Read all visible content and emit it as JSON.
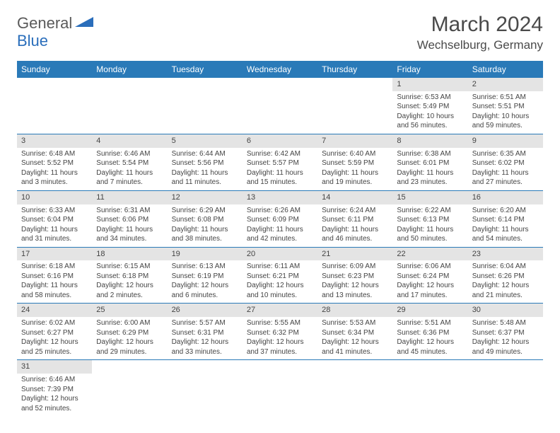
{
  "brand": {
    "part1": "General",
    "part2": "Blue",
    "color1": "#5a5a5a",
    "color2": "#2a6ebb"
  },
  "title": "March 2024",
  "location": "Wechselburg, Germany",
  "header_bg": "#2a7ab8",
  "grid_line": "#2a7ab8",
  "daynum_bg": "#e4e4e4",
  "weekdays": [
    "Sunday",
    "Monday",
    "Tuesday",
    "Wednesday",
    "Thursday",
    "Friday",
    "Saturday"
  ],
  "days": {
    "1": {
      "sr": "6:53 AM",
      "ss": "5:49 PM",
      "dl": "10 hours and 56 minutes."
    },
    "2": {
      "sr": "6:51 AM",
      "ss": "5:51 PM",
      "dl": "10 hours and 59 minutes."
    },
    "3": {
      "sr": "6:48 AM",
      "ss": "5:52 PM",
      "dl": "11 hours and 3 minutes."
    },
    "4": {
      "sr": "6:46 AM",
      "ss": "5:54 PM",
      "dl": "11 hours and 7 minutes."
    },
    "5": {
      "sr": "6:44 AM",
      "ss": "5:56 PM",
      "dl": "11 hours and 11 minutes."
    },
    "6": {
      "sr": "6:42 AM",
      "ss": "5:57 PM",
      "dl": "11 hours and 15 minutes."
    },
    "7": {
      "sr": "6:40 AM",
      "ss": "5:59 PM",
      "dl": "11 hours and 19 minutes."
    },
    "8": {
      "sr": "6:38 AM",
      "ss": "6:01 PM",
      "dl": "11 hours and 23 minutes."
    },
    "9": {
      "sr": "6:35 AM",
      "ss": "6:02 PM",
      "dl": "11 hours and 27 minutes."
    },
    "10": {
      "sr": "6:33 AM",
      "ss": "6:04 PM",
      "dl": "11 hours and 31 minutes."
    },
    "11": {
      "sr": "6:31 AM",
      "ss": "6:06 PM",
      "dl": "11 hours and 34 minutes."
    },
    "12": {
      "sr": "6:29 AM",
      "ss": "6:08 PM",
      "dl": "11 hours and 38 minutes."
    },
    "13": {
      "sr": "6:26 AM",
      "ss": "6:09 PM",
      "dl": "11 hours and 42 minutes."
    },
    "14": {
      "sr": "6:24 AM",
      "ss": "6:11 PM",
      "dl": "11 hours and 46 minutes."
    },
    "15": {
      "sr": "6:22 AM",
      "ss": "6:13 PM",
      "dl": "11 hours and 50 minutes."
    },
    "16": {
      "sr": "6:20 AM",
      "ss": "6:14 PM",
      "dl": "11 hours and 54 minutes."
    },
    "17": {
      "sr": "6:18 AM",
      "ss": "6:16 PM",
      "dl": "11 hours and 58 minutes."
    },
    "18": {
      "sr": "6:15 AM",
      "ss": "6:18 PM",
      "dl": "12 hours and 2 minutes."
    },
    "19": {
      "sr": "6:13 AM",
      "ss": "6:19 PM",
      "dl": "12 hours and 6 minutes."
    },
    "20": {
      "sr": "6:11 AM",
      "ss": "6:21 PM",
      "dl": "12 hours and 10 minutes."
    },
    "21": {
      "sr": "6:09 AM",
      "ss": "6:23 PM",
      "dl": "12 hours and 13 minutes."
    },
    "22": {
      "sr": "6:06 AM",
      "ss": "6:24 PM",
      "dl": "12 hours and 17 minutes."
    },
    "23": {
      "sr": "6:04 AM",
      "ss": "6:26 PM",
      "dl": "12 hours and 21 minutes."
    },
    "24": {
      "sr": "6:02 AM",
      "ss": "6:27 PM",
      "dl": "12 hours and 25 minutes."
    },
    "25": {
      "sr": "6:00 AM",
      "ss": "6:29 PM",
      "dl": "12 hours and 29 minutes."
    },
    "26": {
      "sr": "5:57 AM",
      "ss": "6:31 PM",
      "dl": "12 hours and 33 minutes."
    },
    "27": {
      "sr": "5:55 AM",
      "ss": "6:32 PM",
      "dl": "12 hours and 37 minutes."
    },
    "28": {
      "sr": "5:53 AM",
      "ss": "6:34 PM",
      "dl": "12 hours and 41 minutes."
    },
    "29": {
      "sr": "5:51 AM",
      "ss": "6:36 PM",
      "dl": "12 hours and 45 minutes."
    },
    "30": {
      "sr": "5:48 AM",
      "ss": "6:37 PM",
      "dl": "12 hours and 49 minutes."
    },
    "31": {
      "sr": "6:46 AM",
      "ss": "7:39 PM",
      "dl": "12 hours and 52 minutes."
    }
  },
  "labels": {
    "sunrise": "Sunrise:",
    "sunset": "Sunset:",
    "daylight": "Daylight:"
  },
  "grid": [
    [
      null,
      null,
      null,
      null,
      null,
      "1",
      "2"
    ],
    [
      "3",
      "4",
      "5",
      "6",
      "7",
      "8",
      "9"
    ],
    [
      "10",
      "11",
      "12",
      "13",
      "14",
      "15",
      "16"
    ],
    [
      "17",
      "18",
      "19",
      "20",
      "21",
      "22",
      "23"
    ],
    [
      "24",
      "25",
      "26",
      "27",
      "28",
      "29",
      "30"
    ],
    [
      "31",
      null,
      null,
      null,
      null,
      null,
      null
    ]
  ]
}
